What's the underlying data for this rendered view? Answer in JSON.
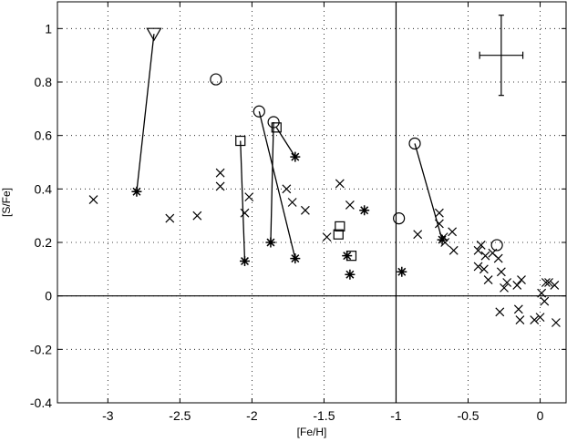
{
  "chart_data": {
    "type": "scatter",
    "xlabel": "[Fe/H]",
    "ylabel": "[S/Fe]",
    "xlim": [
      -3.35,
      0.18
    ],
    "ylim": [
      -0.4,
      1.1
    ],
    "xticks": [
      -3,
      -2.5,
      -2,
      -1.5,
      -1,
      -0.5,
      0
    ],
    "xtick_labels": [
      "-3",
      "-2.5",
      "-2",
      "-1.5",
      "-1",
      "-0.5",
      "0"
    ],
    "yticks": [
      -0.4,
      -0.2,
      0,
      0.2,
      0.4,
      0.6,
      0.8,
      1
    ],
    "ytick_labels": [
      "-0.4",
      "-0.2",
      "0",
      "0.2",
      "0.4",
      "0.6",
      "0.8",
      "1"
    ],
    "grid": true,
    "reference_lines": {
      "horizontal_y": 0,
      "vertical_x": -1
    },
    "error_bar": {
      "x": -0.27,
      "y": 0.9,
      "x_err": 0.15,
      "y_err": 0.15
    },
    "series": [
      {
        "marker": "cross",
        "points": [
          [
            -3.1,
            0.36
          ],
          [
            -2.57,
            0.29
          ],
          [
            -2.38,
            0.3
          ],
          [
            -2.22,
            0.46
          ],
          [
            -2.22,
            0.41
          ],
          [
            -2.05,
            0.31
          ],
          [
            -2.02,
            0.37
          ],
          [
            -1.76,
            0.4
          ],
          [
            -1.72,
            0.35
          ],
          [
            -1.63,
            0.32
          ],
          [
            -1.39,
            0.42
          ],
          [
            -1.32,
            0.34
          ],
          [
            -1.48,
            0.22
          ],
          [
            -0.85,
            0.23
          ],
          [
            -0.7,
            0.31
          ],
          [
            -0.7,
            0.27
          ],
          [
            -0.67,
            0.22
          ],
          [
            -0.66,
            0.2
          ],
          [
            -0.61,
            0.24
          ],
          [
            -0.6,
            0.17
          ],
          [
            -0.43,
            0.17
          ],
          [
            -0.41,
            0.19
          ],
          [
            -0.38,
            0.15
          ],
          [
            -0.33,
            0.16
          ],
          [
            -0.29,
            0.14
          ],
          [
            -0.43,
            0.11
          ],
          [
            -0.39,
            0.1
          ],
          [
            -0.36,
            0.06
          ],
          [
            -0.27,
            0.09
          ],
          [
            -0.25,
            0.03
          ],
          [
            -0.23,
            0.05
          ],
          [
            -0.16,
            0.04
          ],
          [
            -0.13,
            0.06
          ],
          [
            -0.28,
            -0.06
          ],
          [
            -0.15,
            -0.05
          ],
          [
            -0.14,
            -0.09
          ],
          [
            -0.04,
            -0.09
          ],
          [
            0.0,
            -0.08
          ],
          [
            0.01,
            0.01
          ],
          [
            0.03,
            -0.02
          ],
          [
            0.04,
            0.05
          ],
          [
            0.06,
            0.05
          ],
          [
            0.1,
            0.04
          ],
          [
            0.11,
            -0.1
          ]
        ]
      },
      {
        "marker": "asterisk",
        "points": [
          [
            -2.8,
            0.39
          ],
          [
            -2.05,
            0.13
          ],
          [
            -1.87,
            0.2
          ],
          [
            -1.7,
            0.52
          ],
          [
            -1.7,
            0.14
          ],
          [
            -1.22,
            0.32
          ],
          [
            -1.34,
            0.15
          ],
          [
            -1.32,
            0.08
          ],
          [
            -0.96,
            0.09
          ],
          [
            -0.68,
            0.21
          ]
        ]
      },
      {
        "marker": "circle",
        "points": [
          [
            -2.25,
            0.81
          ],
          [
            -1.95,
            0.69
          ],
          [
            -1.85,
            0.65
          ],
          [
            -0.98,
            0.29
          ],
          [
            -0.87,
            0.57
          ],
          [
            -0.3,
            0.19
          ]
        ]
      },
      {
        "marker": "square",
        "points": [
          [
            -2.08,
            0.58
          ],
          [
            -1.83,
            0.63
          ],
          [
            -1.39,
            0.26
          ],
          [
            -1.4,
            0.23
          ],
          [
            -1.31,
            0.15
          ]
        ]
      },
      {
        "marker": "triangle-down",
        "points": [
          [
            -2.68,
            0.98
          ]
        ]
      }
    ],
    "connections": [
      [
        [
          -2.68,
          0.98
        ],
        [
          -2.8,
          0.39
        ]
      ],
      [
        [
          -2.08,
          0.58
        ],
        [
          -2.05,
          0.13
        ]
      ],
      [
        [
          -1.95,
          0.69
        ],
        [
          -1.7,
          0.14
        ]
      ],
      [
        [
          -1.85,
          0.65
        ],
        [
          -1.87,
          0.2
        ]
      ],
      [
        [
          -1.83,
          0.63
        ],
        [
          -1.7,
          0.52
        ]
      ],
      [
        [
          -0.87,
          0.57
        ],
        [
          -0.68,
          0.21
        ]
      ]
    ]
  }
}
